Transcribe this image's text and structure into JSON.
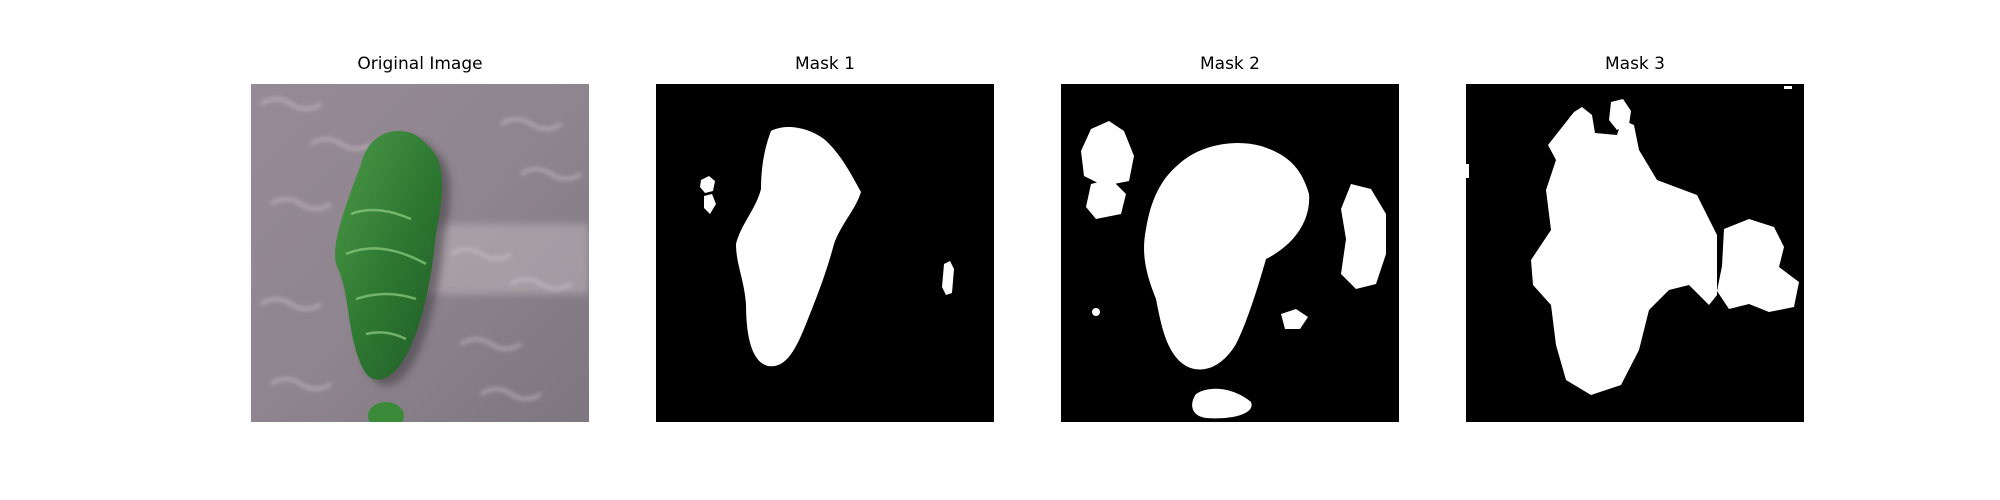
{
  "figure": {
    "panels": [
      {
        "title": "Original Image",
        "kind": "photo"
      },
      {
        "title": "Mask 1",
        "kind": "mask"
      },
      {
        "title": "Mask 2",
        "kind": "mask"
      },
      {
        "title": "Mask 3",
        "kind": "mask"
      }
    ]
  },
  "colors": {
    "mask_background": "#000000",
    "mask_foreground": "#ffffff",
    "photo_background": "#8f8590",
    "leaf_dark": "#1f5a25",
    "leaf_mid": "#3e8a3c",
    "leaf_light": "#6fb066"
  }
}
